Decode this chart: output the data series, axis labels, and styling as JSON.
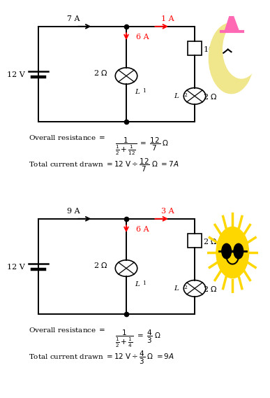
{
  "bg_color": "#ffffff",
  "diagram1": {
    "voltage": "12 V",
    "current_main": "7 A",
    "current_branch1": "6 A",
    "current_branch2": "1 A",
    "r_left": "2 $\\Omega$",
    "r_right_top": "10 $\\Omega$",
    "r_right_bottom": "2 $\\Omega$",
    "l1_label": "L",
    "l2_label": "L",
    "formula_den": "\\frac{1}{2} + \\frac{1}{12}",
    "formula_result_num": "12",
    "formula_result_den": "7",
    "total_result_num": "12",
    "total_result_den": "7",
    "total_current": "7 A",
    "moon": true
  },
  "diagram2": {
    "voltage": "12 V",
    "current_main": "9 A",
    "current_branch1": "6 A",
    "current_branch2": "3 A",
    "r_left": "2 $\\Omega$",
    "r_right_top": "2 $\\Omega$",
    "r_right_bottom": "2 $\\Omega$",
    "l1_label": "L",
    "l2_label": "L",
    "formula_den": "\\frac{1}{2} + \\frac{1}{4}",
    "formula_result_num": "4",
    "formula_result_den": "3",
    "total_result_num": "4",
    "total_result_den": "3",
    "total_current": "9 A",
    "moon": false
  }
}
